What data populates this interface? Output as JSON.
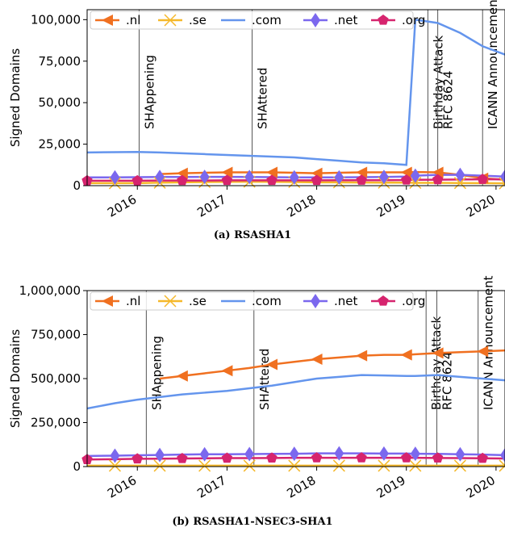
{
  "chart_data": [
    {
      "type": "line",
      "title": "(a) RSASHA1",
      "y_label": "Signed Domains",
      "x": [
        2015.44,
        2015.75,
        2016.0,
        2016.25,
        2016.5,
        2016.75,
        2017.0,
        2017.25,
        2017.5,
        2017.75,
        2018.0,
        2018.25,
        2018.5,
        2018.75,
        2019.0,
        2019.1,
        2019.35,
        2019.6,
        2019.85,
        2020.1
      ],
      "xlim": [
        2015.44,
        2020.1
      ],
      "xticks": [
        2016,
        2017,
        2018,
        2019,
        2020
      ],
      "ylim": [
        0,
        106000
      ],
      "yticks": [
        0,
        {
          "value": 25000,
          "label": "25,000"
        },
        {
          "value": 50000,
          "label": "50,000"
        },
        {
          "value": 75000,
          "label": "75,000"
        },
        {
          "value": 100000,
          "label": "100,000"
        }
      ],
      "legend": "top",
      "annotations": [
        {
          "text": "SHAppening",
          "x": 2016.02
        },
        {
          "text": "SHAttered",
          "x": 2017.28
        },
        {
          "text": "Birthday Attack",
          "x": 2019.24
        },
        {
          "text": "RFC 8624",
          "x": 2019.35
        },
        {
          "text": "ICANN Announcement",
          "x": 2019.85
        }
      ],
      "series": [
        {
          "name": ".nl",
          "color": "#f07020",
          "marker": "triangle-left",
          "values": [
            null,
            null,
            null,
            7000,
            7500,
            7800,
            8000,
            8000,
            8000,
            7800,
            7500,
            7800,
            8000,
            8000,
            8000,
            8200,
            8000,
            6500,
            4500,
            3500
          ]
        },
        {
          "name": ".se",
          "color": "#f5b82a",
          "marker": "x",
          "values": [
            1500,
            1500,
            1500,
            1800,
            2000,
            2200,
            2300,
            2400,
            2300,
            2200,
            2000,
            2000,
            1900,
            1800,
            1800,
            1700,
            1700,
            1600,
            1500,
            1400
          ]
        },
        {
          "name": ".com",
          "color": "#6495ed",
          "marker": "none",
          "values": [
            20000,
            20200,
            20300,
            20000,
            19500,
            19000,
            18500,
            18000,
            17500,
            17000,
            16000,
            15000,
            14000,
            13500,
            12500,
            100000,
            98000,
            92000,
            84000,
            79000
          ]
        },
        {
          "name": ".net",
          "color": "#7b68ee",
          "marker": "diamond",
          "values": [
            5000,
            5000,
            5100,
            5200,
            5200,
            5300,
            5300,
            5200,
            5100,
            5000,
            5000,
            5000,
            5100,
            5200,
            5500,
            6000,
            6500,
            6500,
            6000,
            5500
          ]
        },
        {
          "name": ".org",
          "color": "#d6246e",
          "marker": "pentagon",
          "values": [
            3000,
            3000,
            3000,
            3100,
            3100,
            3100,
            3200,
            3200,
            3200,
            3200,
            3200,
            3300,
            3300,
            3300,
            3400,
            3500,
            3600,
            3700,
            3800,
            3800
          ]
        }
      ]
    },
    {
      "type": "line",
      "title": "(b) RSASHA1-NSEC3-SHA1",
      "y_label": "Signed Domains",
      "x": [
        2015.44,
        2015.75,
        2016.0,
        2016.25,
        2016.5,
        2016.75,
        2017.0,
        2017.25,
        2017.5,
        2017.75,
        2018.0,
        2018.25,
        2018.5,
        2018.75,
        2019.0,
        2019.1,
        2019.35,
        2019.6,
        2019.85,
        2020.1
      ],
      "xlim": [
        2015.44,
        2020.1
      ],
      "xticks": [
        2016,
        2017,
        2018,
        2019,
        2020
      ],
      "ylim": [
        0,
        1000000
      ],
      "yticks": [
        0,
        {
          "value": 250000,
          "label": "250,000"
        },
        {
          "value": 500000,
          "label": "500,000"
        },
        {
          "value": 750000,
          "label": "750,000"
        },
        {
          "value": 1000000,
          "label": "1,000,000"
        }
      ],
      "legend": "top",
      "annotations": [
        {
          "text": "SHAppening",
          "x": 2016.1
        },
        {
          "text": "SHAttered",
          "x": 2017.3
        },
        {
          "text": "Birthday Attack",
          "x": 2019.22
        },
        {
          "text": "RFC 8624",
          "x": 2019.34
        },
        {
          "text": "ICANN Announcement",
          "x": 2019.8
        }
      ],
      "series": [
        {
          "name": ".nl",
          "color": "#f07020",
          "marker": "triangle-left",
          "values": [
            null,
            null,
            null,
            500000,
            515000,
            530000,
            545000,
            560000,
            580000,
            595000,
            610000,
            620000,
            630000,
            635000,
            635000,
            638000,
            645000,
            650000,
            655000,
            660000
          ]
        },
        {
          "name": ".se",
          "color": "#f5b82a",
          "marker": "x",
          "values": [
            5000,
            5000,
            5000,
            5000,
            5000,
            5000,
            5000,
            5000,
            5000,
            5000,
            5000,
            5000,
            5000,
            5000,
            5000,
            5000,
            5000,
            5000,
            5000,
            5000
          ]
        },
        {
          "name": ".com",
          "color": "#6495ed",
          "marker": "none",
          "values": [
            330000,
            360000,
            380000,
            395000,
            410000,
            420000,
            430000,
            445000,
            460000,
            480000,
            500000,
            510000,
            520000,
            518000,
            515000,
            515000,
            520000,
            510000,
            500000,
            490000
          ]
        },
        {
          "name": ".net",
          "color": "#7b68ee",
          "marker": "diamond",
          "values": [
            60000,
            62000,
            64000,
            66000,
            68000,
            70000,
            70000,
            71000,
            72000,
            73000,
            75000,
            75000,
            75000,
            74000,
            74000,
            73000,
            72000,
            70000,
            68000,
            65000
          ]
        },
        {
          "name": ".org",
          "color": "#d6246e",
          "marker": "pentagon",
          "values": [
            40000,
            42000,
            44000,
            45000,
            46000,
            47000,
            48000,
            48000,
            49000,
            50000,
            50000,
            50000,
            50000,
            50000,
            50000,
            50000,
            49000,
            48000,
            47000,
            46000
          ]
        }
      ]
    }
  ]
}
